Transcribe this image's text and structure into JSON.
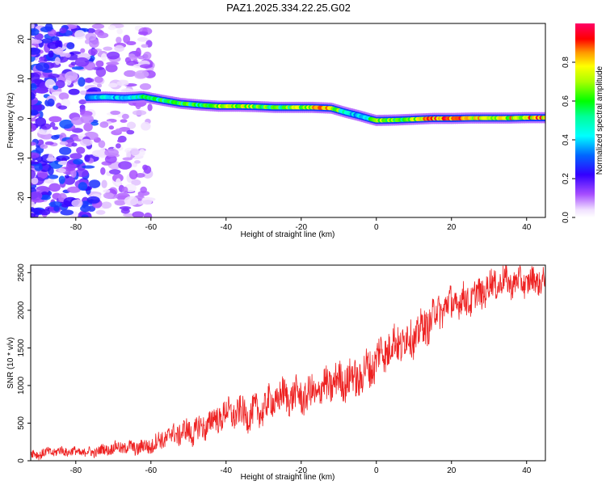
{
  "title": "PAZ1.2025.334.22.25.G02",
  "chart_data": [
    {
      "type": "heatmap",
      "xlabel": "Height of straight line (km)",
      "ylabel": "Frequency (Hz)",
      "xlim": [
        -92,
        45
      ],
      "ylim": [
        -25,
        24
      ],
      "xticks": [
        "-80",
        "-60",
        "-40",
        "-20",
        "0",
        "20",
        "40"
      ],
      "xtick_values": [
        -80,
        -60,
        -40,
        -20,
        0,
        20,
        40
      ],
      "yticks": [
        "-20",
        "-10",
        "0",
        "10",
        "20"
      ],
      "ytick_values": [
        -20,
        -10,
        0,
        10,
        20
      ],
      "ridge": {
        "x": [
          -77,
          -72,
          -67,
          -62,
          -57,
          -52,
          -47,
          -42,
          -37,
          -32,
          -27,
          -22,
          -17,
          -12,
          -8,
          -5,
          -2,
          0,
          5,
          10,
          15,
          20,
          25,
          30,
          35,
          40,
          45
        ],
        "freq": [
          5.3,
          5.4,
          5.2,
          5.5,
          4.6,
          3.8,
          3.4,
          3.1,
          3.1,
          3.0,
          2.8,
          2.8,
          2.8,
          2.6,
          1.5,
          0.8,
          0.0,
          -0.5,
          -0.4,
          -0.2,
          0.0,
          0.0,
          0.1,
          0.1,
          0.1,
          0.2,
          0.2
        ],
        "amplitude": [
          0.35,
          0.45,
          0.4,
          0.55,
          0.6,
          0.62,
          0.6,
          0.75,
          0.78,
          0.7,
          0.6,
          0.7,
          0.8,
          0.85,
          0.45,
          0.4,
          0.5,
          0.7,
          0.65,
          0.7,
          0.95,
          0.92,
          0.85,
          0.78,
          0.8,
          0.85,
          0.9
        ]
      },
      "noise_region_x": [
        -92,
        -60
      ],
      "colorbar": {
        "label": "Normalized spectral amplitude",
        "range": [
          0,
          1
        ],
        "ticks": [
          "0.0",
          "0.2",
          "0.4",
          "0.6",
          "0.8"
        ],
        "tick_values": [
          0,
          0.2,
          0.4,
          0.6,
          0.8
        ]
      }
    },
    {
      "type": "line",
      "xlabel": "Height of straight line (km)",
      "ylabel": "SNR (10 * v/v)",
      "xlim": [
        -92,
        45
      ],
      "ylim": [
        0,
        2600
      ],
      "xticks": [
        "-80",
        "-60",
        "-40",
        "-20",
        "0",
        "20",
        "40"
      ],
      "xtick_values": [
        -80,
        -60,
        -40,
        -20,
        0,
        20,
        40
      ],
      "yticks": [
        "0",
        "500",
        "1000",
        "1500",
        "2000",
        "2500"
      ],
      "ytick_values": [
        0,
        500,
        1000,
        1500,
        2000,
        2500
      ],
      "color": "#ee2222",
      "series": [
        {
          "name": "SNR",
          "x": [
            -92,
            -85,
            -80,
            -75,
            -70,
            -65,
            -60,
            -55,
            -50,
            -45,
            -40,
            -35,
            -30,
            -25,
            -20,
            -15,
            -10,
            -5,
            0,
            5,
            10,
            15,
            20,
            25,
            30,
            35,
            40,
            45
          ],
          "values": [
            100,
            110,
            120,
            130,
            150,
            180,
            220,
            300,
            400,
            500,
            580,
            650,
            720,
            800,
            900,
            950,
            1000,
            1150,
            1350,
            1500,
            1700,
            1900,
            2050,
            2200,
            2300,
            2350,
            2420,
            2400
          ],
          "spread": [
            60,
            55,
            55,
            60,
            70,
            80,
            100,
            120,
            150,
            160,
            170,
            180,
            190,
            200,
            200,
            210,
            220,
            230,
            240,
            230,
            220,
            210,
            200,
            190,
            180,
            170,
            160,
            150
          ]
        }
      ]
    }
  ]
}
